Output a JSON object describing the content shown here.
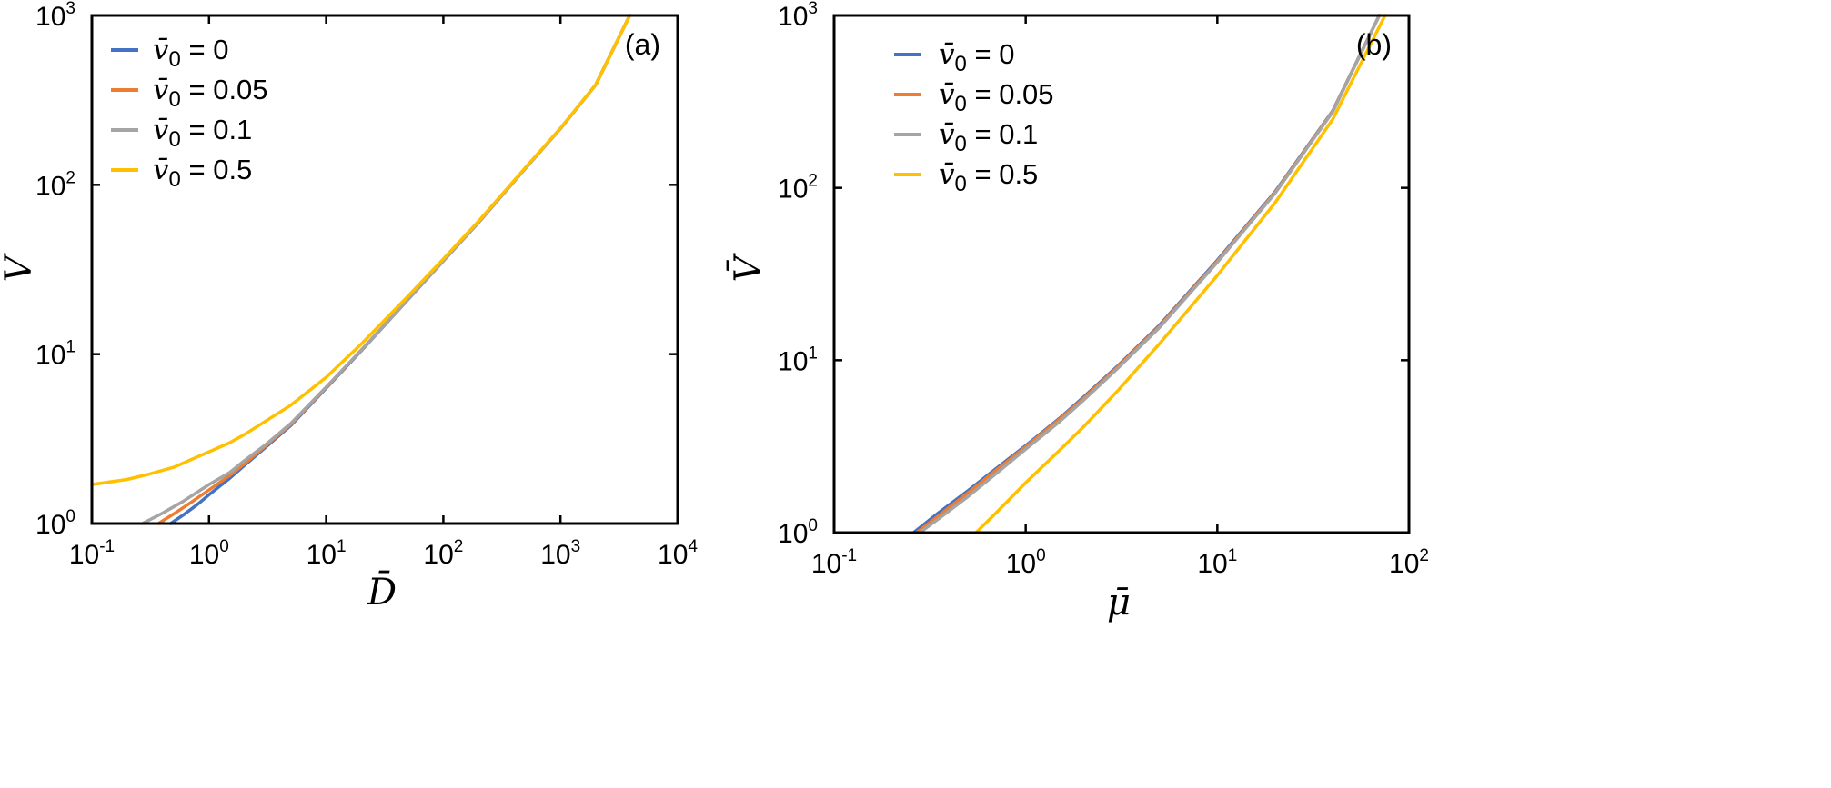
{
  "chart_data": [
    {
      "type": "line",
      "panel_label": "(a)",
      "xlabel": "D̄",
      "ylabel": "V̄",
      "xscale": "log",
      "yscale": "log",
      "xlim": [
        0.1,
        10000
      ],
      "ylim": [
        1,
        1000
      ],
      "x_ticks": [
        {
          "base": "10",
          "exp": "-1",
          "value": 0.1
        },
        {
          "base": "10",
          "exp": "0",
          "value": 1
        },
        {
          "base": "10",
          "exp": "1",
          "value": 10
        },
        {
          "base": "10",
          "exp": "2",
          "value": 100
        },
        {
          "base": "10",
          "exp": "3",
          "value": 1000
        },
        {
          "base": "10",
          "exp": "4",
          "value": 10000
        }
      ],
      "y_ticks": [
        {
          "base": "10",
          "exp": "0",
          "value": 1
        },
        {
          "base": "10",
          "exp": "1",
          "value": 10
        },
        {
          "base": "10",
          "exp": "2",
          "value": 100
        },
        {
          "base": "10",
          "exp": "3",
          "value": 1000
        }
      ],
      "grid": false,
      "legend_position": "top-left",
      "series": [
        {
          "name": "v̄₀ = 0",
          "legend_prefix": "v̄",
          "legend_sub": "0",
          "legend_value": "= 0",
          "color": "#4472C4",
          "x": [
            0.47,
            0.6,
            0.8,
            1,
            1.5,
            2,
            3,
            5,
            10,
            20,
            50,
            100,
            200,
            500,
            1000,
            2000,
            3900
          ],
          "y": [
            1.0,
            1.12,
            1.3,
            1.48,
            1.85,
            2.2,
            2.8,
            3.8,
            6.3,
            10.5,
            21,
            35.5,
            60,
            125,
            215,
            390,
            1000
          ]
        },
        {
          "name": "v̄₀ = 0.05",
          "legend_prefix": "v̄",
          "legend_sub": "0",
          "legend_value": "= 0.05",
          "color": "#ED7D31",
          "x": [
            0.37,
            0.5,
            0.7,
            1,
            1.5,
            2,
            3,
            5,
            10,
            20,
            50,
            100,
            200,
            500,
            1000,
            2000,
            3900
          ],
          "y": [
            1.0,
            1.14,
            1.33,
            1.58,
            1.92,
            2.25,
            2.85,
            3.85,
            6.35,
            10.6,
            21,
            35.5,
            60,
            125,
            215,
            390,
            1000
          ]
        },
        {
          "name": "v̄₀ = 0.1",
          "legend_prefix": "v̄",
          "legend_sub": "0",
          "legend_value": "= 0.1",
          "color": "#A5A5A5",
          "x": [
            0.27,
            0.4,
            0.6,
            1,
            1.5,
            2,
            3,
            5,
            10,
            20,
            50,
            100,
            200,
            500,
            1000,
            2000,
            3900
          ],
          "y": [
            1.0,
            1.15,
            1.35,
            1.7,
            2.0,
            2.35,
            2.9,
            3.9,
            6.4,
            10.6,
            21,
            35.5,
            60,
            125,
            215,
            390,
            1000
          ]
        },
        {
          "name": "v̄₀ = 0.5",
          "legend_prefix": "v̄",
          "legend_sub": "0",
          "legend_value": "= 0.5",
          "color": "#FFC000",
          "x": [
            0.1,
            0.2,
            0.3,
            0.5,
            0.7,
            1,
            1.5,
            2,
            3,
            5,
            10,
            20,
            50,
            100,
            200,
            500,
            1000,
            2000,
            3900
          ],
          "y": [
            1.7,
            1.82,
            1.95,
            2.15,
            2.38,
            2.65,
            3.0,
            3.35,
            4.0,
            5.0,
            7.3,
            11.5,
            22,
            36.5,
            61,
            126,
            216,
            390,
            1000
          ]
        }
      ]
    },
    {
      "type": "line",
      "panel_label": "(b)",
      "xlabel": "μ̄",
      "ylabel": "V̄",
      "xscale": "log",
      "yscale": "log",
      "xlim": [
        0.1,
        100
      ],
      "ylim": [
        1,
        1000
      ],
      "x_ticks": [
        {
          "base": "10",
          "exp": "-1",
          "value": 0.1
        },
        {
          "base": "10",
          "exp": "0",
          "value": 1
        },
        {
          "base": "10",
          "exp": "1",
          "value": 10
        },
        {
          "base": "10",
          "exp": "2",
          "value": 100
        }
      ],
      "y_ticks": [
        {
          "base": "10",
          "exp": "0",
          "value": 1
        },
        {
          "base": "10",
          "exp": "1",
          "value": 10
        },
        {
          "base": "10",
          "exp": "2",
          "value": 100
        },
        {
          "base": "10",
          "exp": "3",
          "value": 1000
        }
      ],
      "grid": false,
      "legend_position": "top-left",
      "series": [
        {
          "name": "v̄₀ = 0",
          "legend_prefix": "v̄",
          "legend_sub": "0",
          "legend_value": "= 0",
          "color": "#4472C4",
          "x": [
            0.26,
            0.35,
            0.5,
            0.7,
            1,
            1.5,
            2,
            3,
            5,
            10,
            20,
            40,
            70
          ],
          "y": [
            1.0,
            1.3,
            1.75,
            2.35,
            3.2,
            4.6,
            6.1,
            9.2,
            16,
            38,
            95,
            280,
            1000
          ]
        },
        {
          "name": "v̄₀ = 0.05",
          "legend_prefix": "v̄",
          "legend_sub": "0",
          "legend_value": "= 0.05",
          "color": "#ED7D31",
          "x": [
            0.27,
            0.35,
            0.5,
            0.7,
            1,
            1.5,
            2,
            3,
            5,
            10,
            20,
            40,
            70
          ],
          "y": [
            1.0,
            1.25,
            1.7,
            2.3,
            3.15,
            4.55,
            6.0,
            9.1,
            15.8,
            37.5,
            94,
            278,
            1000
          ]
        },
        {
          "name": "v̄₀ = 0.1",
          "legend_prefix": "v̄",
          "legend_sub": "0",
          "legend_value": "= 0.1",
          "color": "#A5A5A5",
          "x": [
            0.28,
            0.35,
            0.5,
            0.7,
            1,
            1.5,
            2,
            3,
            5,
            10,
            20,
            40,
            70
          ],
          "y": [
            1.0,
            1.2,
            1.62,
            2.2,
            3.05,
            4.4,
            5.85,
            8.9,
            15.5,
            37,
            93,
            276,
            1000
          ]
        },
        {
          "name": "v̄₀ = 0.5",
          "legend_prefix": "v̄",
          "legend_sub": "0",
          "legend_value": "= 0.5",
          "color": "#FFC000",
          "x": [
            0.55,
            0.7,
            1,
            1.5,
            2,
            3,
            5,
            10,
            20,
            40,
            75
          ],
          "y": [
            1.0,
            1.3,
            1.95,
            3.0,
            4.1,
            6.6,
            12.5,
            31,
            82,
            250,
            1000
          ]
        }
      ]
    }
  ]
}
